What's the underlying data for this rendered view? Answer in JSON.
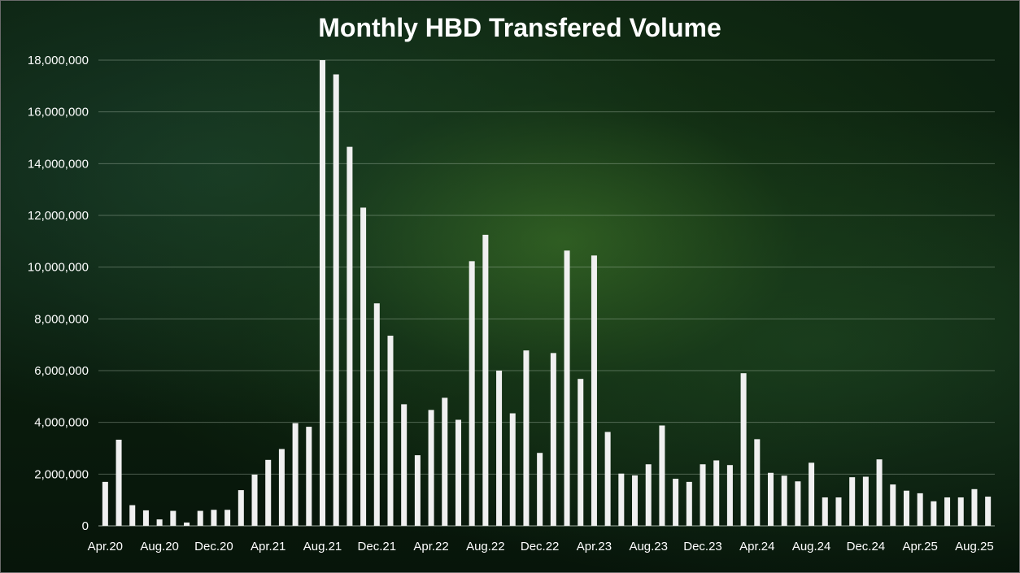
{
  "chart_data": {
    "type": "bar",
    "title": "Monthly HBD Transfered Volume",
    "xlabel": "",
    "ylabel": "",
    "ylim": [
      0,
      18000000
    ],
    "grid": true,
    "legend": "none",
    "bar_color": "#f0f0f0",
    "y_tick_labels": [
      "0",
      "2,000,000",
      "4,000,000",
      "6,000,000",
      "8,000,000",
      "10,000,000",
      "12,000,000",
      "14,000,000",
      "16,000,000",
      "18,000,000"
    ],
    "y_tick_values": [
      0,
      2000000,
      4000000,
      6000000,
      8000000,
      10000000,
      12000000,
      14000000,
      16000000,
      18000000
    ],
    "categories": [
      "Apr.20",
      "May.20",
      "Jun.20",
      "Jul.20",
      "Aug.20",
      "Sep.20",
      "Oct.20",
      "Nov.20",
      "Dec.20",
      "Jan.21",
      "Feb.21",
      "Mar.21",
      "Apr.21",
      "May.21",
      "Jun.21",
      "Jul.21",
      "Aug.21",
      "Sep.21",
      "Oct.21",
      "Nov.21",
      "Dec.21",
      "Jan.22",
      "Feb.22",
      "Mar.22",
      "Apr.22",
      "May.22",
      "Jun.22",
      "Jul.22",
      "Aug.22",
      "Sep.22",
      "Oct.22",
      "Nov.22",
      "Dec.22",
      "Jan.23",
      "Feb.23",
      "Mar.23",
      "Apr.23",
      "May.23",
      "Jun.23",
      "Jul.23",
      "Aug.23",
      "Sep.23",
      "Oct.23",
      "Nov.23",
      "Dec.23",
      "Jan.24",
      "Feb.24",
      "Mar.24",
      "Apr.24",
      "May.24",
      "Jun.24",
      "Jul.24",
      "Aug.24",
      "Sep.24",
      "Oct.24",
      "Nov.24",
      "Dec.24",
      "Jan.25",
      "Feb.25",
      "Mar.25",
      "Apr.25",
      "May.25",
      "Jun.25",
      "Jul.25",
      "Aug.25",
      "Sep.25"
    ],
    "x_tick_labels": [
      "Apr.20",
      "Aug.20",
      "Dec.20",
      "Apr.21",
      "Aug.21",
      "Dec.21",
      "Apr.22",
      "Aug.22",
      "Dec.22",
      "Apr.23",
      "Aug.23",
      "Dec.23",
      "Apr.24",
      "Aug.24",
      "Dec.24",
      "Apr.25",
      "Aug.25"
    ],
    "values": [
      1700000,
      3330000,
      800000,
      600000,
      250000,
      580000,
      130000,
      580000,
      620000,
      620000,
      1380000,
      1980000,
      2550000,
      2970000,
      3970000,
      3830000,
      18000000,
      17450000,
      14650000,
      12300000,
      8600000,
      7350000,
      4700000,
      2730000,
      4480000,
      4950000,
      4100000,
      10230000,
      11250000,
      6000000,
      4350000,
      6780000,
      2820000,
      6680000,
      10640000,
      5680000,
      10450000,
      3630000,
      2020000,
      1950000,
      2380000,
      3880000,
      1820000,
      1700000,
      2380000,
      2530000,
      2350000,
      5900000,
      3350000,
      2050000,
      1940000,
      1720000,
      2440000,
      1100000,
      1100000,
      1880000,
      1900000,
      2570000,
      1600000,
      1360000,
      1260000,
      950000,
      1100000,
      1100000,
      1420000,
      1130000
    ]
  }
}
